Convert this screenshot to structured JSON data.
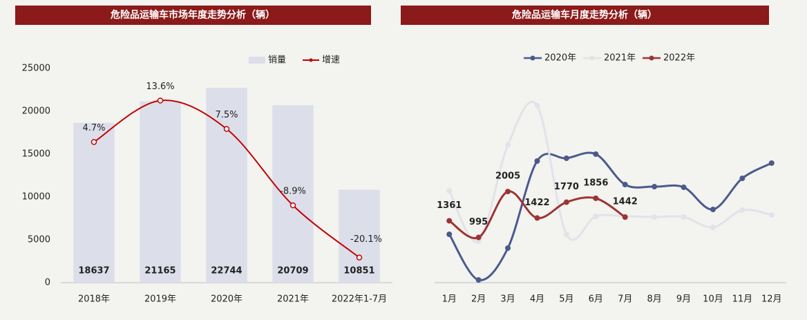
{
  "chart_data": [
    {
      "type": "bar",
      "title": "危险品运输车市场年度走势分析（辆）",
      "categories": [
        "2018年",
        "2019年",
        "2020年",
        "2021年",
        "2022年1-7月"
      ],
      "series": [
        {
          "name": "销量",
          "type": "bar",
          "color": "#dcdfea",
          "values": [
            18637,
            21165,
            22744,
            20709,
            10851
          ]
        },
        {
          "name": "增速",
          "type": "line",
          "axis": "y2",
          "color": "#c00000",
          "values": [
            4.7,
            13.6,
            7.5,
            -8.9,
            -20.1
          ],
          "value_labels": [
            "4.7%",
            "13.6%",
            "7.5%",
            "-8.9%",
            "-20.1%"
          ]
        }
      ],
      "ylim": [
        0,
        25000
      ],
      "yticks": [
        0,
        5000,
        10000,
        15000,
        20000,
        25000
      ],
      "y2lim": [
        -25.5,
        20.5
      ]
    },
    {
      "type": "line",
      "title": "危险品运输车月度走势分析（辆）",
      "categories": [
        "1月",
        "2月",
        "3月",
        "4月",
        "5月",
        "6月",
        "7月",
        "8月",
        "9月",
        "10月",
        "11月",
        "12月"
      ],
      "series": [
        {
          "name": "2020年",
          "color": "#4b5a8c",
          "values": [
            1064,
            60,
            760,
            2675,
            2736,
            2827,
            2158,
            2112,
            2098,
            1611,
            2295,
            2630
          ]
        },
        {
          "name": "2021年",
          "color": "#e1e3ea",
          "values": [
            2022,
            912,
            3025,
            3891,
            1064,
            1459,
            1459,
            1444,
            1444,
            1216,
            1596,
            1490
          ]
        },
        {
          "name": "2022年",
          "color": "#9c3434",
          "data_labels": true,
          "values": [
            1361,
            995,
            2005,
            1422,
            1770,
            1856,
            1442,
            null,
            null,
            null,
            null,
            null
          ]
        }
      ],
      "ylim": [
        0,
        5000
      ]
    }
  ]
}
